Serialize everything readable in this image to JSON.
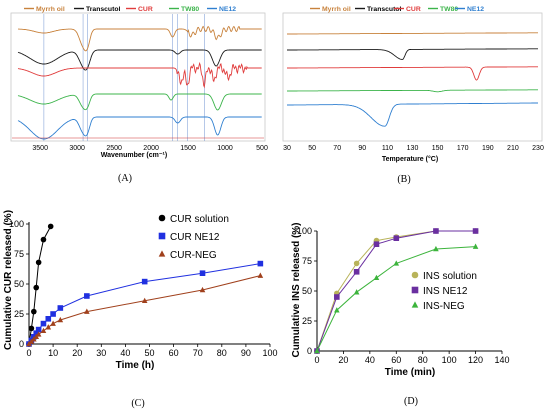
{
  "panels": {
    "a": {
      "label": "(A)"
    },
    "b": {
      "label": "(B)"
    },
    "c": {
      "label": "(C)"
    },
    "d": {
      "label": "(D)"
    }
  },
  "chart_data": [
    {
      "type": "line",
      "panel": "A",
      "xlabel": "Wavenumber (cm⁻¹)",
      "ylabel": "",
      "xlim": [
        3800,
        500
      ],
      "x_reversed": true,
      "xticks": [
        "3500",
        "3000",
        "2500",
        "2000",
        "1500",
        "1000",
        "500"
      ],
      "reference_lines_x": [
        3450,
        2920,
        2860,
        1710,
        1640,
        1510,
        1280
      ],
      "legend_position": "top",
      "series": [
        {
          "name": "Myrrh oil",
          "color": "#c8823c"
        },
        {
          "name": "Transcutol",
          "color": "#1a1a1a"
        },
        {
          "name": "CUR",
          "color": "#e03c3c"
        },
        {
          "name": "TW80",
          "color": "#3cb44b"
        },
        {
          "name": "NE12",
          "color": "#2f7fd0"
        }
      ]
    },
    {
      "type": "line",
      "panel": "B",
      "xlabel": "Temperature (°C)",
      "ylabel": "",
      "xlim": [
        30,
        230
      ],
      "xticks": [
        "30",
        "50",
        "70",
        "90",
        "110",
        "130",
        "150",
        "170",
        "190",
        "210",
        "230"
      ],
      "legend_position": "top",
      "series": [
        {
          "name": "Myrrh oil",
          "color": "#c8823c"
        },
        {
          "name": "Transcutol",
          "color": "#1a1a1a"
        },
        {
          "name": "CUR",
          "color": "#e03c3c"
        },
        {
          "name": "TW80",
          "color": "#3cb44b"
        },
        {
          "name": "NE12",
          "color": "#2f7fd0"
        }
      ]
    },
    {
      "type": "line",
      "panel": "C",
      "xlabel": "Time (h)",
      "ylabel": "Cumulative CUR released (%)",
      "xlim": [
        0,
        100
      ],
      "ylim": [
        0,
        100
      ],
      "xticks": [
        "0",
        "10",
        "20",
        "30",
        "40",
        "50",
        "60",
        "70",
        "80",
        "90",
        "100"
      ],
      "yticks": [
        "0",
        "25",
        "50",
        "75",
        "100"
      ],
      "legend_position": "top-right",
      "series": [
        {
          "name": "CUR solution",
          "color": "#000000",
          "marker": "circle",
          "x": [
            0,
            1,
            2,
            3,
            4,
            6,
            9
          ],
          "y": [
            0,
            13,
            27,
            47,
            68,
            87,
            98
          ]
        },
        {
          "name": "CUR NE12",
          "color": "#2030e0",
          "marker": "square",
          "x": [
            0,
            1,
            2,
            3,
            4,
            6,
            8,
            10,
            13,
            24,
            48,
            72,
            96
          ],
          "y": [
            0,
            3,
            6,
            9,
            12,
            17,
            21,
            25,
            30,
            40,
            52,
            59,
            67
          ]
        },
        {
          "name": "CUR-NEG",
          "color": "#a0401c",
          "marker": "triangle",
          "x": [
            0,
            1,
            2,
            3,
            4,
            6,
            8,
            10,
            13,
            24,
            48,
            72,
            96
          ],
          "y": [
            0,
            2,
            4,
            6,
            8,
            11,
            14,
            17,
            20,
            27,
            36,
            45,
            57
          ]
        }
      ]
    },
    {
      "type": "line",
      "panel": "D",
      "xlabel": "Time (min)",
      "ylabel": "Cumulative INS released (%)",
      "xlim": [
        0,
        140
      ],
      "ylim": [
        0,
        100
      ],
      "xticks": [
        "0",
        "20",
        "40",
        "60",
        "80",
        "100",
        "120",
        "140"
      ],
      "yticks": [
        "0",
        "25",
        "50",
        "75",
        "100"
      ],
      "legend_position": "right",
      "series": [
        {
          "name": "INS solution",
          "color": "#b8b35a",
          "marker": "circle",
          "x": [
            0,
            15,
            30,
            45,
            60,
            90,
            120
          ],
          "y": [
            0,
            48,
            73,
            92,
            95,
            100,
            100
          ]
        },
        {
          "name": "INS NE12",
          "color": "#6a2fa0",
          "marker": "square",
          "x": [
            0,
            15,
            30,
            45,
            60,
            90,
            120
          ],
          "y": [
            0,
            45,
            66,
            89,
            94,
            100,
            100
          ]
        },
        {
          "name": "INS-NEG",
          "color": "#3cb43c",
          "marker": "triangle",
          "x": [
            0,
            15,
            30,
            45,
            60,
            90,
            120
          ],
          "y": [
            0,
            34,
            49,
            61,
            73,
            85,
            87
          ]
        }
      ]
    }
  ]
}
